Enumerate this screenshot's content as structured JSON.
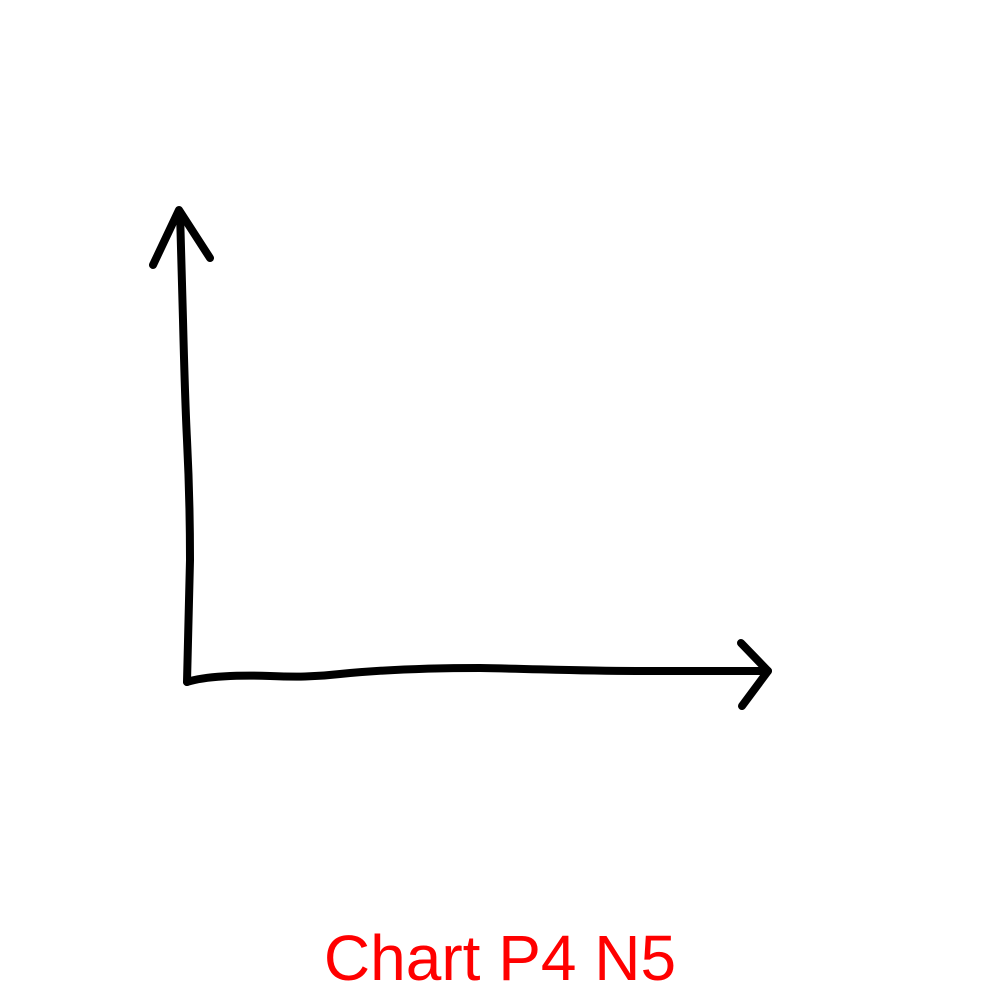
{
  "caption": "Chart P4 N5",
  "colors": {
    "background": "#ffffff",
    "axis": "#000000",
    "caption": "#ff0000"
  }
}
